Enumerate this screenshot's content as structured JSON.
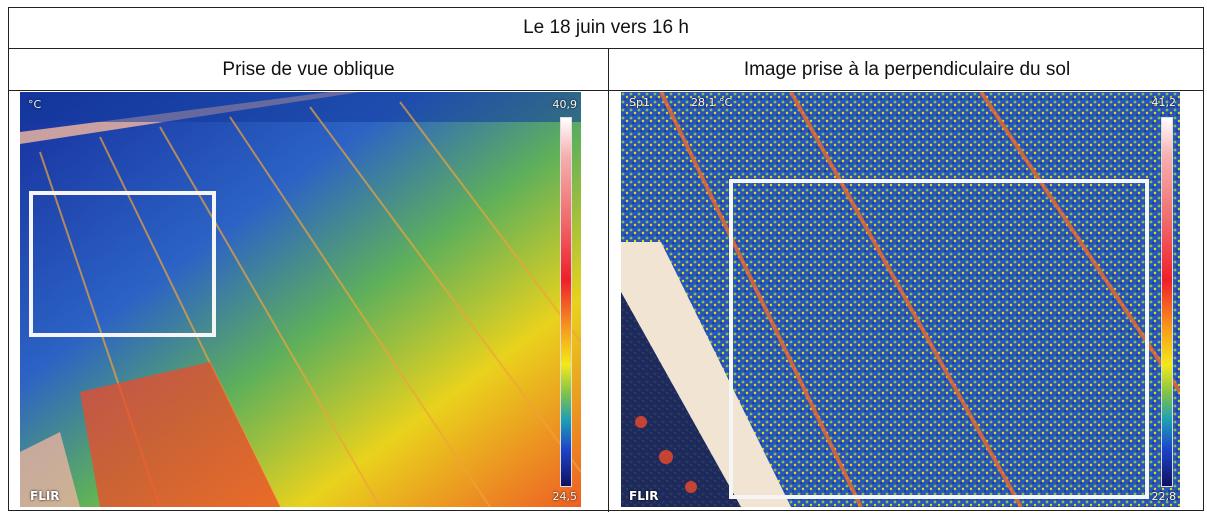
{
  "table": {
    "title": "Le 18 juin vers 16 h",
    "columns": [
      {
        "heading": "Prise de vue oblique"
      },
      {
        "heading": "Image prise à la perpendiculaire du sol"
      }
    ]
  },
  "thermal_left": {
    "unit": "°C",
    "max": "40,9",
    "min": "24,5",
    "logo": "FLIR"
  },
  "thermal_right": {
    "top_label": "Sp1",
    "top_value": "28,1 °C",
    "max": "41,2",
    "min": "22,8",
    "logo": "FLIR"
  },
  "palette": {
    "cold": "#1d3fb0",
    "cool": "#2f86c9",
    "mid": "#8cc63f",
    "warm": "#f2e01d",
    "hot": "#ef3a2a",
    "white": "#f3ead9"
  }
}
